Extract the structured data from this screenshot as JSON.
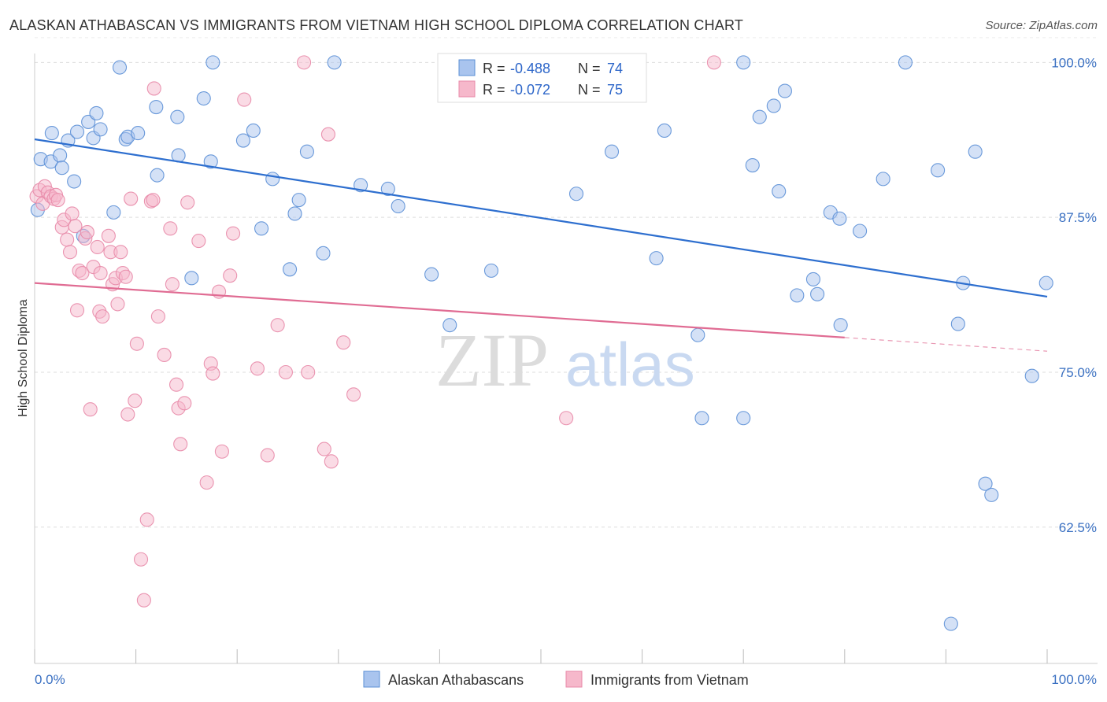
{
  "header": {
    "title": "ALASKAN ATHABASCAN VS IMMIGRANTS FROM VIETNAM HIGH SCHOOL DIPLOMA CORRELATION CHART",
    "source": "Source: ZipAtlas.com"
  },
  "watermark": {
    "zip": "ZIP",
    "atlas": "atlas"
  },
  "stats_legend": {
    "rows": [
      {
        "r_label": "R =",
        "r_value": "-0.488",
        "n_label": "N =",
        "n_value": "74"
      },
      {
        "r_label": "R =",
        "r_value": "-0.072",
        "n_label": "N =",
        "n_value": "75"
      }
    ]
  },
  "chart_data": {
    "type": "scatter",
    "title": "ALASKAN ATHABASCAN VS IMMIGRANTS FROM VIETNAM HIGH SCHOOL DIPLOMA CORRELATION CHART",
    "xlabel": "",
    "ylabel": "High School Diploma",
    "xlim": [
      0,
      100
    ],
    "ylim": [
      51.5,
      102.5
    ],
    "x_tick_labels": [
      "0.0%",
      "100.0%"
    ],
    "y_ticks": [
      100,
      87.5,
      75,
      62.5
    ],
    "y_tick_labels": [
      "100.0%",
      "87.5%",
      "75.0%",
      "62.5%"
    ],
    "grid": "horizontal dashed",
    "legend_position": "bottom-center",
    "colors": {
      "blue_fill": "#a9c4ee",
      "blue_stroke": "#5b8fd6",
      "blue_line": "#2e6fcf",
      "pink_fill": "#f6b8cb",
      "pink_stroke": "#e88aa8",
      "pink_line": "#e06c93",
      "tick_text": "#3a70c2"
    },
    "series": [
      {
        "name": "Alaskan Athabascans",
        "color": "#5b8fd6",
        "trend": {
          "x": [
            0,
            100
          ],
          "y": [
            93.8,
            81.1
          ]
        },
        "points": [
          [
            0.3,
            88.1
          ],
          [
            0.6,
            92.2
          ],
          [
            1.6,
            92.0
          ],
          [
            1.7,
            94.3
          ],
          [
            2.5,
            92.5
          ],
          [
            2.7,
            91.5
          ],
          [
            3.3,
            93.7
          ],
          [
            3.9,
            90.4
          ],
          [
            4.2,
            94.4
          ],
          [
            4.8,
            86.0
          ],
          [
            5.3,
            95.2
          ],
          [
            5.8,
            93.9
          ],
          [
            6.1,
            95.9
          ],
          [
            6.5,
            94.6
          ],
          [
            7.8,
            87.9
          ],
          [
            8.4,
            99.6
          ],
          [
            9.0,
            93.8
          ],
          [
            9.2,
            94.0
          ],
          [
            10.2,
            94.3
          ],
          [
            12.0,
            96.4
          ],
          [
            12.1,
            90.9
          ],
          [
            14.1,
            95.6
          ],
          [
            14.2,
            92.5
          ],
          [
            15.5,
            82.6
          ],
          [
            16.7,
            97.1
          ],
          [
            17.4,
            92.0
          ],
          [
            17.6,
            100.0
          ],
          [
            20.6,
            93.7
          ],
          [
            21.6,
            94.5
          ],
          [
            22.4,
            86.6
          ],
          [
            23.5,
            90.6
          ],
          [
            25.2,
            83.3
          ],
          [
            25.7,
            87.8
          ],
          [
            26.1,
            88.9
          ],
          [
            26.9,
            92.8
          ],
          [
            28.5,
            84.6
          ],
          [
            29.6,
            100.0
          ],
          [
            32.2,
            90.1
          ],
          [
            34.9,
            89.8
          ],
          [
            35.9,
            88.4
          ],
          [
            39.2,
            82.9
          ],
          [
            41.0,
            78.8
          ],
          [
            45.1,
            83.2
          ],
          [
            53.5,
            89.4
          ],
          [
            57.0,
            92.8
          ],
          [
            61.4,
            84.2
          ],
          [
            62.2,
            94.5
          ],
          [
            65.5,
            78.0
          ],
          [
            65.9,
            71.3
          ],
          [
            70.0,
            71.3
          ],
          [
            70.0,
            100.0
          ],
          [
            70.9,
            91.7
          ],
          [
            71.6,
            95.6
          ],
          [
            73.0,
            96.5
          ],
          [
            73.5,
            89.6
          ],
          [
            74.1,
            97.7
          ],
          [
            75.3,
            81.2
          ],
          [
            76.9,
            82.5
          ],
          [
            77.3,
            81.3
          ],
          [
            78.6,
            87.9
          ],
          [
            79.5,
            87.4
          ],
          [
            79.6,
            78.8
          ],
          [
            81.5,
            86.4
          ],
          [
            83.8,
            90.6
          ],
          [
            86.0,
            100.0
          ],
          [
            89.2,
            91.3
          ],
          [
            90.5,
            54.7
          ],
          [
            91.2,
            78.9
          ],
          [
            91.7,
            82.2
          ],
          [
            92.9,
            92.8
          ],
          [
            93.9,
            66.0
          ],
          [
            94.5,
            65.1
          ],
          [
            98.5,
            74.7
          ],
          [
            99.9,
            82.2
          ]
        ]
      },
      {
        "name": "Immigrants from Vietnam",
        "color": "#e88aa8",
        "trend": {
          "x": [
            0,
            80
          ],
          "y": [
            82.2,
            77.8
          ]
        },
        "trend_dashed": {
          "x": [
            80,
            100
          ],
          "y": [
            77.8,
            76.7
          ]
        },
        "points": [
          [
            0.2,
            89.2
          ],
          [
            0.5,
            89.7
          ],
          [
            0.8,
            88.6
          ],
          [
            1.0,
            90.0
          ],
          [
            1.3,
            89.5
          ],
          [
            1.6,
            89.2
          ],
          [
            1.9,
            89.0
          ],
          [
            2.1,
            89.3
          ],
          [
            2.3,
            88.9
          ],
          [
            2.7,
            86.7
          ],
          [
            2.9,
            87.3
          ],
          [
            3.2,
            85.7
          ],
          [
            3.5,
            84.7
          ],
          [
            3.7,
            87.8
          ],
          [
            4.0,
            86.8
          ],
          [
            4.2,
            80.0
          ],
          [
            4.4,
            83.2
          ],
          [
            4.7,
            83.0
          ],
          [
            5.0,
            85.8
          ],
          [
            5.2,
            86.3
          ],
          [
            5.5,
            72.0
          ],
          [
            5.8,
            83.5
          ],
          [
            6.2,
            85.1
          ],
          [
            6.4,
            79.9
          ],
          [
            6.5,
            83.0
          ],
          [
            6.7,
            79.5
          ],
          [
            7.3,
            86.0
          ],
          [
            7.5,
            84.7
          ],
          [
            7.7,
            82.1
          ],
          [
            8.0,
            82.6
          ],
          [
            8.2,
            80.5
          ],
          [
            8.5,
            84.7
          ],
          [
            8.7,
            83.0
          ],
          [
            9.0,
            82.7
          ],
          [
            9.2,
            71.6
          ],
          [
            9.5,
            89.0
          ],
          [
            9.9,
            72.7
          ],
          [
            10.1,
            77.3
          ],
          [
            10.5,
            59.9
          ],
          [
            10.8,
            56.6
          ],
          [
            11.1,
            63.1
          ],
          [
            11.5,
            88.8
          ],
          [
            11.7,
            88.9
          ],
          [
            11.8,
            97.9
          ],
          [
            12.2,
            79.5
          ],
          [
            12.8,
            76.4
          ],
          [
            13.4,
            86.6
          ],
          [
            13.6,
            82.1
          ],
          [
            14.0,
            74.0
          ],
          [
            14.2,
            72.1
          ],
          [
            14.4,
            69.2
          ],
          [
            14.8,
            72.5
          ],
          [
            15.1,
            88.7
          ],
          [
            16.2,
            85.6
          ],
          [
            17.0,
            66.1
          ],
          [
            17.4,
            75.7
          ],
          [
            17.6,
            74.9
          ],
          [
            18.2,
            81.5
          ],
          [
            18.5,
            68.6
          ],
          [
            19.3,
            82.8
          ],
          [
            19.6,
            86.2
          ],
          [
            20.7,
            97.0
          ],
          [
            22.0,
            75.3
          ],
          [
            23.0,
            68.3
          ],
          [
            24.0,
            78.8
          ],
          [
            24.8,
            75.0
          ],
          [
            26.6,
            100.0
          ],
          [
            27.0,
            75.0
          ],
          [
            28.6,
            68.8
          ],
          [
            29.0,
            94.2
          ],
          [
            29.3,
            67.8
          ],
          [
            30.5,
            77.4
          ],
          [
            31.5,
            73.2
          ],
          [
            52.5,
            71.3
          ],
          [
            67.1,
            100.0
          ]
        ]
      }
    ]
  },
  "bottom_legend": {
    "items": [
      {
        "label": "Alaskan Athabascans"
      },
      {
        "label": "Immigrants from Vietnam"
      }
    ]
  }
}
